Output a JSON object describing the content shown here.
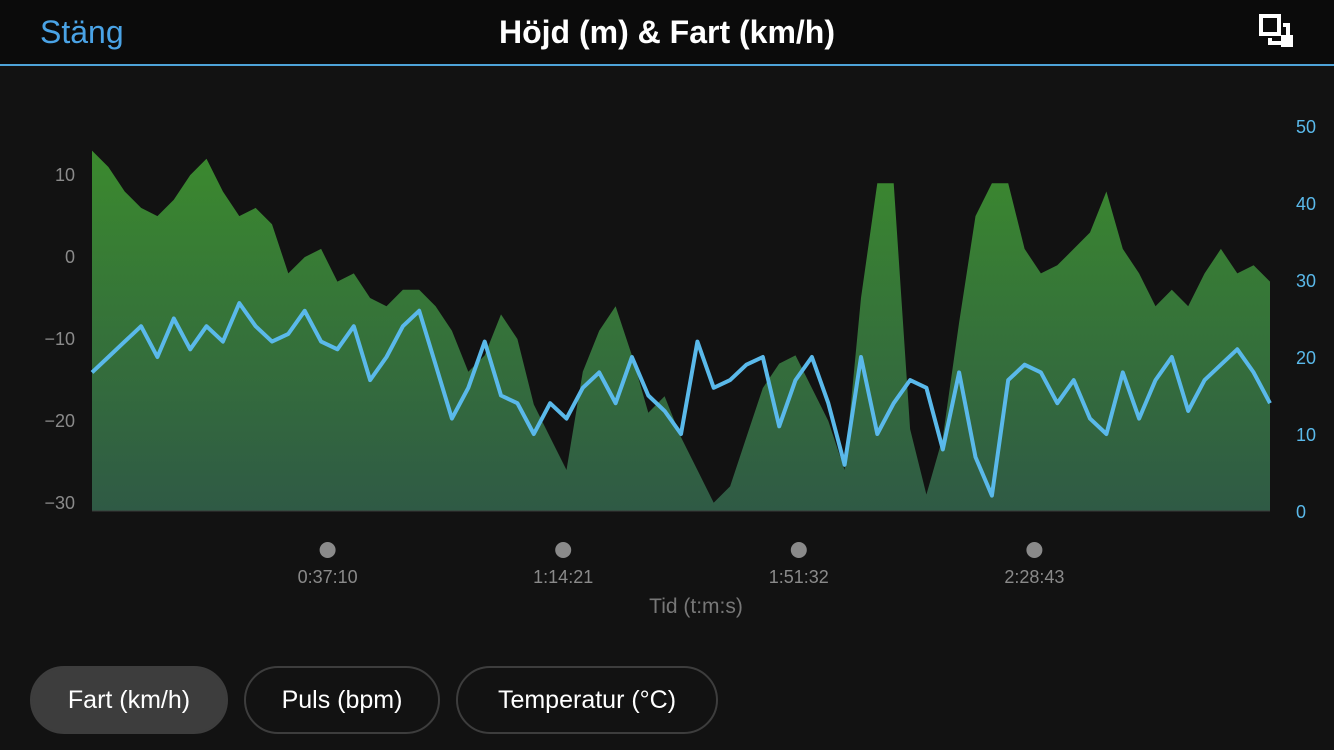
{
  "header": {
    "close_label": "Stäng",
    "title": "Höjd (m) & Fart (km/h)",
    "expand_icon": "expand-icon"
  },
  "tabs": [
    {
      "label": "Fart (km/h)",
      "active": true
    },
    {
      "label": "Puls (bpm)",
      "active": false
    },
    {
      "label": "Temperatur (°C)",
      "active": false
    }
  ],
  "colors": {
    "accent": "#4aa3e6",
    "elevation_fill": "#3e8a35",
    "speed_line": "#5ab9ea",
    "background": "#121212"
  },
  "chart_data": {
    "type": "area",
    "xlabel": "Tid (t:m:s)",
    "x_ticks": [
      "0:37:10",
      "1:14:21",
      "1:51:32",
      "2:28:43"
    ],
    "x_range_seconds": [
      0,
      10800
    ],
    "left_axis": {
      "ticks": [
        "10",
        "0",
        "−10",
        "−20",
        "−30"
      ],
      "range": [
        -31,
        16
      ]
    },
    "right_axis": {
      "ticks": [
        "50",
        "40",
        "30",
        "20",
        "10",
        "0"
      ],
      "range": [
        0,
        50
      ]
    },
    "series": [
      {
        "axis": "left",
        "style": "area",
        "color": "#3e8a35",
        "x": [
          0,
          150,
          300,
          450,
          600,
          750,
          900,
          1050,
          1200,
          1350,
          1500,
          1650,
          1800,
          1950,
          2100,
          2250,
          2400,
          2550,
          2700,
          2850,
          3000,
          3150,
          3300,
          3450,
          3600,
          3750,
          3900,
          4050,
          4200,
          4350,
          4500,
          4650,
          4800,
          4950,
          5100,
          5250,
          5400,
          5550,
          5700,
          5850,
          6000,
          6150,
          6300,
          6450,
          6600,
          6750,
          6900,
          7050,
          7200,
          7350,
          7500,
          7650,
          7800,
          7950,
          8100,
          8250,
          8400,
          8550,
          8700,
          8850,
          9000,
          9150,
          9300,
          9450,
          9600,
          9750,
          9900,
          10050,
          10200,
          10350,
          10500,
          10650,
          10800
        ],
        "values": [
          13,
          11,
          8,
          6,
          5,
          7,
          10,
          12,
          8,
          5,
          6,
          4,
          -2,
          0,
          1,
          -3,
          -2,
          -5,
          -6,
          -4,
          -4,
          -6,
          -9,
          -14,
          -12,
          -7,
          -10,
          -18,
          -22,
          -26,
          -14,
          -9,
          -6,
          -12,
          -19,
          -17,
          -22,
          -26,
          -30,
          -28,
          -22,
          -16,
          -13,
          -12,
          -16,
          -20,
          -26,
          -5,
          9,
          9,
          -21,
          -29,
          -22,
          -8,
          5,
          9,
          9,
          1,
          -2,
          -1,
          1,
          3,
          8,
          1,
          -2,
          -6,
          -4,
          -6,
          -2,
          1,
          -2,
          -1,
          -3
        ]
      },
      {
        "axis": "right",
        "style": "line",
        "color": "#5ab9ea",
        "x": [
          0,
          150,
          300,
          450,
          600,
          750,
          900,
          1050,
          1200,
          1350,
          1500,
          1650,
          1800,
          1950,
          2100,
          2250,
          2400,
          2550,
          2700,
          2850,
          3000,
          3150,
          3300,
          3450,
          3600,
          3750,
          3900,
          4050,
          4200,
          4350,
          4500,
          4650,
          4800,
          4950,
          5100,
          5250,
          5400,
          5550,
          5700,
          5850,
          6000,
          6150,
          6300,
          6450,
          6600,
          6750,
          6900,
          7050,
          7200,
          7350,
          7500,
          7650,
          7800,
          7950,
          8100,
          8250,
          8400,
          8550,
          8700,
          8850,
          9000,
          9150,
          9300,
          9450,
          9600,
          9750,
          9900,
          10050,
          10200,
          10350,
          10500,
          10650,
          10800
        ],
        "values": [
          18,
          20,
          22,
          24,
          20,
          25,
          21,
          24,
          22,
          27,
          24,
          22,
          23,
          26,
          22,
          21,
          24,
          17,
          20,
          24,
          26,
          19,
          12,
          16,
          22,
          15,
          14,
          10,
          14,
          12,
          16,
          18,
          14,
          20,
          15,
          13,
          10,
          22,
          16,
          17,
          19,
          20,
          11,
          17,
          20,
          14,
          6,
          20,
          10,
          14,
          17,
          16,
          8,
          18,
          7,
          2,
          17,
          19,
          18,
          14,
          17,
          12,
          10,
          18,
          12,
          17,
          20,
          13,
          17,
          19,
          21,
          18,
          14
        ]
      }
    ],
    "grid": false,
    "legend": "none"
  }
}
